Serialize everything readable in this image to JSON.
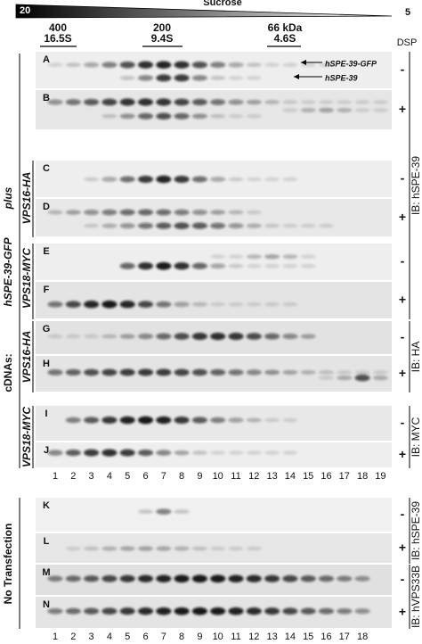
{
  "header": {
    "gradient_label": "Sucrose",
    "gradient_start": "20",
    "gradient_end": "5",
    "markers": [
      {
        "size": "400",
        "coefficient": "16.5S"
      },
      {
        "size": "200",
        "coefficient": "9.4S"
      },
      {
        "size": "66 kDa",
        "coefficient": "4.6S"
      }
    ],
    "dsp_label": "DSP"
  },
  "left_labels": {
    "cdnas": "cDNAs:",
    "construct": "hSPE-39-GFP",
    "plus": "plus",
    "groups": [
      "VPS16-HA",
      "VPS18-MYC",
      "VPS16-HA",
      "VPS18-MYC"
    ],
    "no_transfection": "No Transfection"
  },
  "band_labels": [
    "hSPE-39-GFP",
    "hSPE-39"
  ],
  "panels": [
    {
      "letter": "A",
      "dsp": "-"
    },
    {
      "letter": "B",
      "dsp": "+"
    },
    {
      "letter": "C",
      "dsp": "-"
    },
    {
      "letter": "D",
      "dsp": "+"
    },
    {
      "letter": "E",
      "dsp": "-"
    },
    {
      "letter": "F",
      "dsp": "+"
    },
    {
      "letter": "G",
      "dsp": "-"
    },
    {
      "letter": "H",
      "dsp": "+"
    },
    {
      "letter": "I",
      "dsp": "-"
    },
    {
      "letter": "J",
      "dsp": "+"
    },
    {
      "letter": "K",
      "dsp": "-"
    },
    {
      "letter": "L",
      "dsp": "+"
    },
    {
      "letter": "M",
      "dsp": "-"
    },
    {
      "letter": "N",
      "dsp": "+"
    }
  ],
  "antibody_labels": [
    "IB: hSPE-39",
    "IB: HA",
    "IB: MYC",
    "IB: hSPE-39",
    "IB: hVPS33B"
  ],
  "lanes_top": [
    "1",
    "2",
    "3",
    "4",
    "5",
    "6",
    "7",
    "8",
    "9",
    "10",
    "11",
    "12",
    "13",
    "14",
    "15",
    "16",
    "17",
    "18",
    "19"
  ],
  "lanes_bottom": [
    "1",
    "2",
    "3",
    "4",
    "5",
    "6",
    "7",
    "8",
    "9",
    "10",
    "11",
    "12",
    "13",
    "14",
    "15",
    "16",
    "17",
    "18"
  ]
}
